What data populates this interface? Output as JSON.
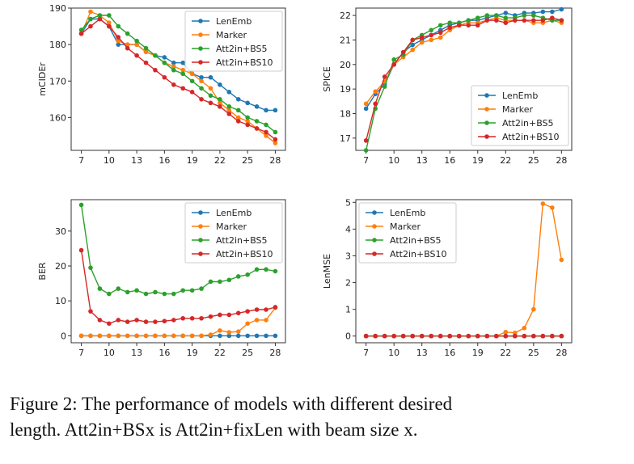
{
  "caption": {
    "line1": "Figure 2:  The performance of models with different desired",
    "line2": "length. Att2in+BSx is Att2in+fixLen with beam size x."
  },
  "colors": {
    "LenEmb": "#1f77b4",
    "Marker": "#ff7f0e",
    "Att2in+BS5": "#2ca02c",
    "Att2in+BS10": "#d62728"
  },
  "chart_data": [
    {
      "type": "line",
      "ylabel": "mCIDEr",
      "x": [
        7,
        8,
        9,
        10,
        11,
        12,
        13,
        14,
        15,
        16,
        17,
        18,
        19,
        20,
        21,
        22,
        23,
        24,
        25,
        26,
        27,
        28
      ],
      "xticks": [
        7,
        10,
        13,
        16,
        19,
        22,
        25,
        28
      ],
      "ylim": [
        151,
        190
      ],
      "yticks": [
        160,
        170,
        180,
        190
      ],
      "legend": "top-right",
      "series": [
        {
          "name": "LenEmb",
          "values": [
            183,
            187,
            187,
            185,
            180,
            180,
            180,
            178,
            177,
            176.5,
            175,
            175,
            172,
            171,
            171,
            169,
            167,
            165,
            164,
            163,
            162,
            162
          ]
        },
        {
          "name": "Marker",
          "values": [
            183,
            189,
            188,
            186,
            181,
            180,
            180,
            178,
            177,
            175,
            174,
            173,
            172,
            170,
            168,
            164,
            162,
            160,
            159,
            157,
            155,
            153
          ]
        },
        {
          "name": "Att2in+BS5",
          "values": [
            184,
            187,
            188,
            188,
            185,
            183,
            181,
            179,
            177,
            175,
            173,
            172,
            170,
            168,
            166,
            165,
            163,
            162,
            160,
            159,
            158,
            156
          ]
        },
        {
          "name": "Att2in+BS10",
          "values": [
            183,
            185,
            187,
            185,
            182,
            179,
            177,
            175,
            173,
            171,
            169,
            168,
            167,
            165,
            164,
            163,
            161,
            159,
            158,
            157,
            156,
            154
          ]
        }
      ]
    },
    {
      "type": "line",
      "ylabel": "SPICE",
      "x": [
        7,
        8,
        9,
        10,
        11,
        12,
        13,
        14,
        15,
        16,
        17,
        18,
        19,
        20,
        21,
        22,
        23,
        24,
        25,
        26,
        27,
        28
      ],
      "xticks": [
        7,
        10,
        13,
        16,
        19,
        22,
        25,
        28
      ],
      "ylim": [
        16.5,
        22.3
      ],
      "yticks": [
        17,
        18,
        19,
        20,
        21,
        22
      ],
      "legend": "bottom-right",
      "series": [
        {
          "name": "LenEmb",
          "values": [
            18.2,
            18.8,
            19.2,
            20.0,
            20.5,
            20.8,
            21.0,
            21.2,
            21.4,
            21.6,
            21.7,
            21.8,
            21.8,
            21.9,
            22.0,
            22.1,
            22.0,
            22.1,
            22.1,
            22.15,
            22.15,
            22.25
          ]
        },
        {
          "name": "Marker",
          "values": [
            18.4,
            18.9,
            19.3,
            20.0,
            20.3,
            20.6,
            20.9,
            21.0,
            21.1,
            21.4,
            21.6,
            21.7,
            21.7,
            21.8,
            21.9,
            21.8,
            21.8,
            21.8,
            21.7,
            21.7,
            21.8,
            21.7
          ]
        },
        {
          "name": "Att2in+BS5",
          "values": [
            16.5,
            18.2,
            19.1,
            20.2,
            20.4,
            21.0,
            21.2,
            21.4,
            21.6,
            21.7,
            21.7,
            21.8,
            21.9,
            22.0,
            22.0,
            21.9,
            21.9,
            22.0,
            22.0,
            21.9,
            21.8,
            21.8
          ]
        },
        {
          "name": "Att2in+BS10",
          "values": [
            16.9,
            18.4,
            19.5,
            20.0,
            20.5,
            21.0,
            21.1,
            21.2,
            21.3,
            21.5,
            21.6,
            21.6,
            21.6,
            21.8,
            21.8,
            21.7,
            21.8,
            21.8,
            21.8,
            21.8,
            21.9,
            21.8
          ]
        }
      ]
    },
    {
      "type": "line",
      "ylabel": "BER",
      "x": [
        7,
        8,
        9,
        10,
        11,
        12,
        13,
        14,
        15,
        16,
        17,
        18,
        19,
        20,
        21,
        22,
        23,
        24,
        25,
        26,
        27,
        28
      ],
      "xticks": [
        7,
        10,
        13,
        16,
        19,
        22,
        25,
        28
      ],
      "ylim": [
        -2,
        39
      ],
      "yticks": [
        0,
        10,
        20,
        30
      ],
      "legend": "top-right",
      "series": [
        {
          "name": "LenEmb",
          "values": [
            0,
            0,
            0,
            0,
            0,
            0,
            0,
            0,
            0,
            0,
            0,
            0,
            0,
            0,
            0,
            0,
            0,
            0,
            0,
            0,
            0,
            0
          ]
        },
        {
          "name": "Marker",
          "values": [
            0,
            0,
            0,
            0,
            0,
            0,
            0,
            0,
            0,
            0,
            0,
            0,
            0,
            0,
            0.3,
            1.5,
            1,
            1.2,
            3.5,
            4.5,
            4.5,
            8
          ]
        },
        {
          "name": "Att2in+BS5",
          "values": [
            37.5,
            19.5,
            13.5,
            12,
            13.5,
            12.5,
            13,
            12,
            12.5,
            12,
            12,
            13,
            13,
            13.5,
            15.5,
            15.5,
            16,
            17,
            17.5,
            19,
            19,
            18.5
          ]
        },
        {
          "name": "Att2in+BS10",
          "values": [
            24.5,
            7,
            4.5,
            3.5,
            4.5,
            4,
            4.5,
            4,
            4,
            4.2,
            4.5,
            5,
            5,
            5,
            5.5,
            6,
            6,
            6.5,
            7,
            7.5,
            7.5,
            8.2
          ]
        }
      ]
    },
    {
      "type": "line",
      "ylabel": "LenMSE",
      "x": [
        7,
        8,
        9,
        10,
        11,
        12,
        13,
        14,
        15,
        16,
        17,
        18,
        19,
        20,
        21,
        22,
        23,
        24,
        25,
        26,
        27,
        28
      ],
      "xticks": [
        7,
        10,
        13,
        16,
        19,
        22,
        25,
        28
      ],
      "ylim": [
        -0.25,
        5.1
      ],
      "yticks": [
        0,
        1,
        2,
        3,
        4,
        5
      ],
      "legend": "top-left",
      "series": [
        {
          "name": "LenEmb",
          "values": [
            0,
            0,
            0,
            0,
            0,
            0,
            0,
            0,
            0,
            0,
            0,
            0,
            0,
            0,
            0,
            0,
            0,
            0,
            0,
            0,
            0,
            0
          ]
        },
        {
          "name": "Marker",
          "values": [
            0,
            0,
            0,
            0,
            0,
            0,
            0,
            0,
            0,
            0,
            0,
            0,
            0,
            0,
            0,
            0.15,
            0.12,
            0.3,
            1.0,
            4.95,
            4.8,
            2.85
          ]
        },
        {
          "name": "Att2in+BS5",
          "values": [
            0,
            0,
            0,
            0,
            0,
            0,
            0,
            0,
            0,
            0,
            0,
            0,
            0,
            0,
            0,
            0,
            0,
            0,
            0,
            0,
            0,
            0
          ]
        },
        {
          "name": "Att2in+BS10",
          "values": [
            0,
            0,
            0,
            0,
            0,
            0,
            0,
            0,
            0,
            0,
            0,
            0,
            0,
            0,
            0,
            0,
            0,
            0,
            0,
            0,
            0,
            0
          ]
        }
      ]
    }
  ]
}
